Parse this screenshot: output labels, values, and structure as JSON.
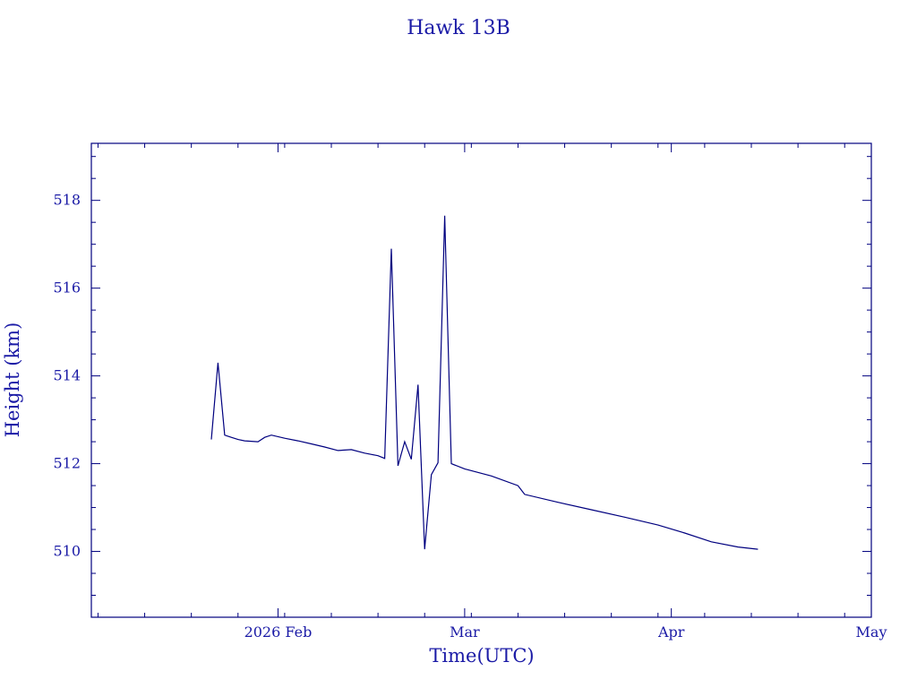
{
  "chart_data": {
    "type": "line",
    "title": "Hawk 13B",
    "xlabel": "Time(UTC)",
    "ylabel": "Height (km)",
    "color": "#00007f",
    "text_color": "#1a1aa6",
    "grid": false,
    "x_range": [
      "2026-01-04",
      "2026-05-01"
    ],
    "ylim": [
      508.5,
      519.3
    ],
    "x_ticks": [
      {
        "date": "2026-02-01",
        "label": "2026 Feb"
      },
      {
        "date": "2026-03-01",
        "label": "Mar"
      },
      {
        "date": "2026-04-01",
        "label": "Apr"
      },
      {
        "date": "2026-05-01",
        "label": "May"
      }
    ],
    "y_ticks": [
      510,
      512,
      514,
      516,
      518
    ],
    "series": [
      {
        "points": [
          [
            "2026-01-22",
            512.55
          ],
          [
            "2026-01-23",
            514.3
          ],
          [
            "2026-01-24",
            512.65
          ],
          [
            "2026-01-25",
            512.6
          ],
          [
            "2026-01-26",
            512.55
          ],
          [
            "2026-01-27",
            512.52
          ],
          [
            "2026-01-29",
            512.5
          ],
          [
            "2026-01-30",
            512.6
          ],
          [
            "2026-01-31",
            512.65
          ],
          [
            "2026-02-02",
            512.58
          ],
          [
            "2026-02-04",
            512.52
          ],
          [
            "2026-02-06",
            512.45
          ],
          [
            "2026-02-08",
            512.38
          ],
          [
            "2026-02-10",
            512.3
          ],
          [
            "2026-02-12",
            512.32
          ],
          [
            "2026-02-14",
            512.24
          ],
          [
            "2026-02-16",
            512.18
          ],
          [
            "2026-02-17",
            512.12
          ],
          [
            "2026-02-18",
            516.9
          ],
          [
            "2026-02-19",
            511.95
          ],
          [
            "2026-02-20",
            512.5
          ],
          [
            "2026-02-21",
            512.1
          ],
          [
            "2026-02-22",
            513.8
          ],
          [
            "2026-02-23",
            510.05
          ],
          [
            "2026-02-24",
            511.75
          ],
          [
            "2026-02-25",
            512.02
          ],
          [
            "2026-02-26",
            517.65
          ],
          [
            "2026-02-27",
            512.0
          ],
          [
            "2026-03-01",
            511.88
          ],
          [
            "2026-03-05",
            511.72
          ],
          [
            "2026-03-09",
            511.5
          ],
          [
            "2026-03-10",
            511.3
          ],
          [
            "2026-03-15",
            511.12
          ],
          [
            "2026-03-20",
            510.95
          ],
          [
            "2026-03-25",
            510.78
          ],
          [
            "2026-03-30",
            510.6
          ],
          [
            "2026-04-03",
            510.42
          ],
          [
            "2026-04-07",
            510.22
          ],
          [
            "2026-04-11",
            510.1
          ],
          [
            "2026-04-14",
            510.05
          ]
        ]
      }
    ]
  }
}
